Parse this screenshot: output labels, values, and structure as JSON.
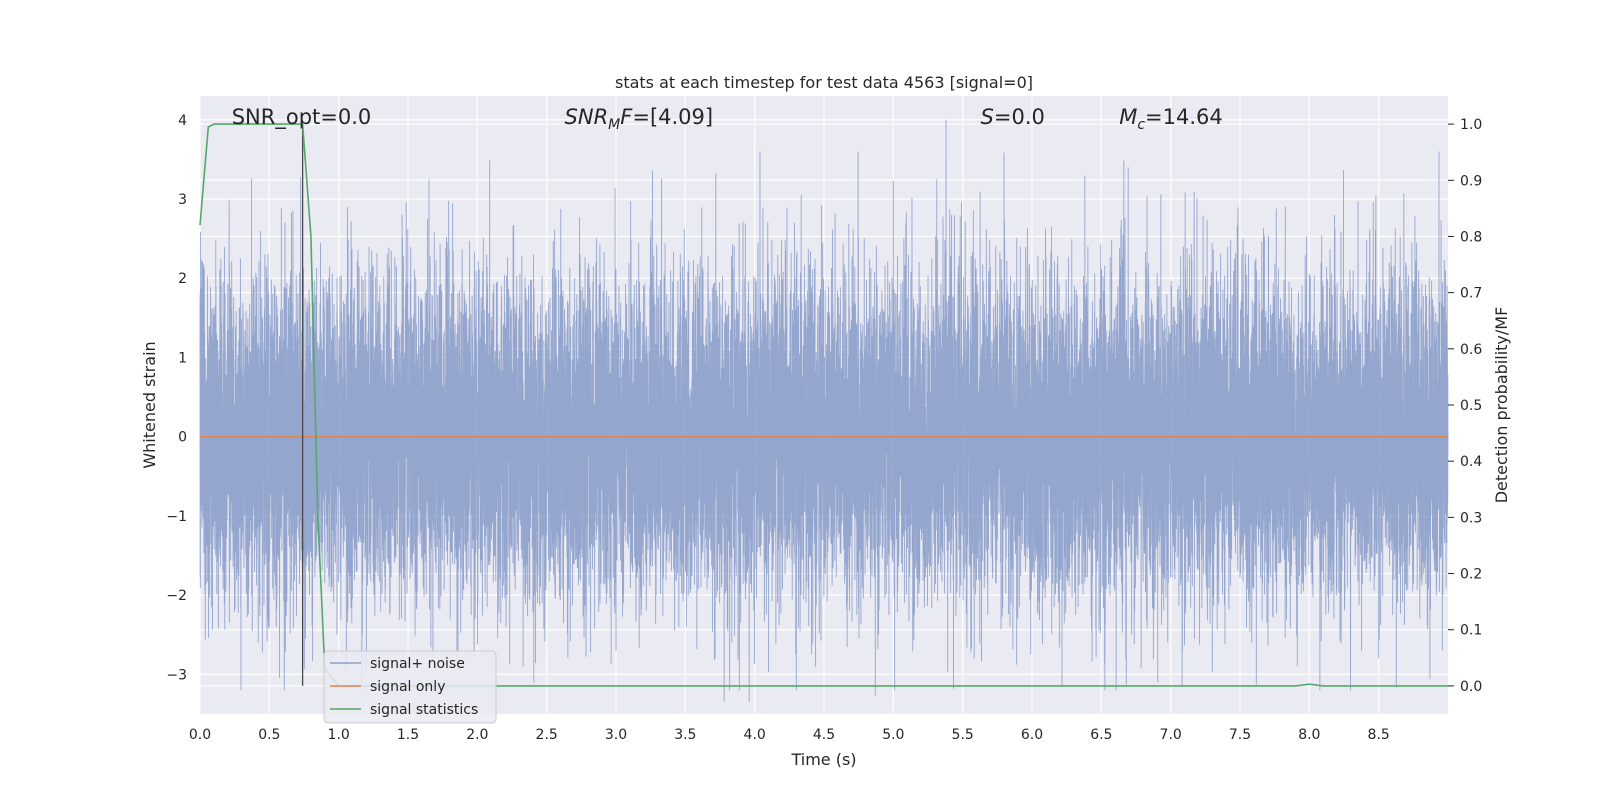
{
  "chart_data": {
    "type": "line",
    "title": "stats at each timestep for test data 4563 [signal=0]",
    "xlabel": "Time (s)",
    "ylabel": "Whitened strain",
    "y2label": "Detection probability/MF",
    "xlim": [
      0,
      9
    ],
    "ylim": [
      -3.5,
      4.3
    ],
    "y2lim": [
      -0.05,
      1.05
    ],
    "x_ticks": [
      0.0,
      0.5,
      1.0,
      1.5,
      2.0,
      2.5,
      3.0,
      3.5,
      4.0,
      4.5,
      5.0,
      5.5,
      6.0,
      6.5,
      7.0,
      7.5,
      8.0,
      8.5
    ],
    "x_tick_labels": [
      "0.0",
      "0.5",
      "1.0",
      "1.5",
      "2.0",
      "2.5",
      "3.0",
      "3.5",
      "4.0",
      "4.5",
      "5.0",
      "5.5",
      "6.0",
      "6.5",
      "7.0",
      "7.5",
      "8.0",
      "8.5"
    ],
    "y_ticks": [
      -3,
      -2,
      -1,
      0,
      1,
      2,
      3,
      4
    ],
    "y_tick_labels": [
      "−3",
      "−2",
      "−1",
      "0",
      "1",
      "2",
      "3",
      "4"
    ],
    "y2_ticks": [
      0.0,
      0.1,
      0.2,
      0.3,
      0.4,
      0.5,
      0.6,
      0.7,
      0.8,
      0.9,
      1.0
    ],
    "y2_tick_labels": [
      "0.0",
      "0.1",
      "0.2",
      "0.3",
      "0.4",
      "0.5",
      "0.6",
      "0.7",
      "0.8",
      "0.9",
      "1.0"
    ],
    "grid": true,
    "legend_position": "lower-left",
    "annotations": [
      {
        "text": "SNR_opt=0.0",
        "x": 0.2
      },
      {
        "text": "SNR_MF=[4.09]",
        "x": 2.6
      },
      {
        "text": "S=0.0",
        "x": 5.6
      },
      {
        "text": "M_c=14.64",
        "x": 6.6
      }
    ],
    "vline": {
      "x": 0.74
    },
    "noise": {
      "sample_rate": 2048,
      "core_sd": 1.0,
      "spikes": [
        {
          "x": 0.21,
          "y": 2.99
        },
        {
          "x": 0.66,
          "y": 2.83
        },
        {
          "x": 1.46,
          "y": 2.52
        },
        {
          "x": 2.33,
          "y": -2.9
        },
        {
          "x": 3.72,
          "y": 3.33
        },
        {
          "x": 3.78,
          "y": -3.35
        },
        {
          "x": 3.96,
          "y": -3.35
        },
        {
          "x": 4.87,
          "y": -3.27
        },
        {
          "x": 5.0,
          "y": 3.23
        },
        {
          "x": 5.38,
          "y": 4.0
        },
        {
          "x": 6.68,
          "y": -3.13
        },
        {
          "x": 7.19,
          "y": 3.01
        },
        {
          "x": 7.48,
          "y": 2.67
        },
        {
          "x": 8.48,
          "y": 3.04
        },
        {
          "x": 8.95,
          "y": 2.73
        },
        {
          "x": 8.5,
          "y": -2.8
        },
        {
          "x": 1.2,
          "y": -3.0
        },
        {
          "x": 0.55,
          "y": -2.3
        }
      ]
    },
    "series": [
      {
        "name": "signal+ noise",
        "color": "#8c9fca",
        "axis": "left"
      },
      {
        "name": "signal only",
        "color": "#dd8452",
        "axis": "left",
        "x": [
          0,
          9
        ],
        "y": [
          0,
          0
        ]
      },
      {
        "name": "signal statistics",
        "color": "#55a868",
        "axis": "right",
        "x": [
          0.0,
          0.06,
          0.1,
          0.15,
          0.3,
          0.5,
          0.7,
          0.74,
          0.8,
          0.85,
          0.9,
          1.0,
          2.0,
          3.0,
          4.0,
          5.0,
          6.0,
          7.0,
          7.9,
          8.0,
          8.1,
          8.5,
          9.0
        ],
        "y": [
          0.82,
          0.995,
          1.0,
          1.0,
          1.0,
          1.0,
          1.0,
          1.0,
          0.8,
          0.3,
          0.03,
          0.0,
          0.0,
          0.0,
          0.0,
          0.0,
          0.0,
          0.0,
          0.0,
          0.003,
          0.0,
          0.0,
          0.0
        ]
      }
    ]
  }
}
